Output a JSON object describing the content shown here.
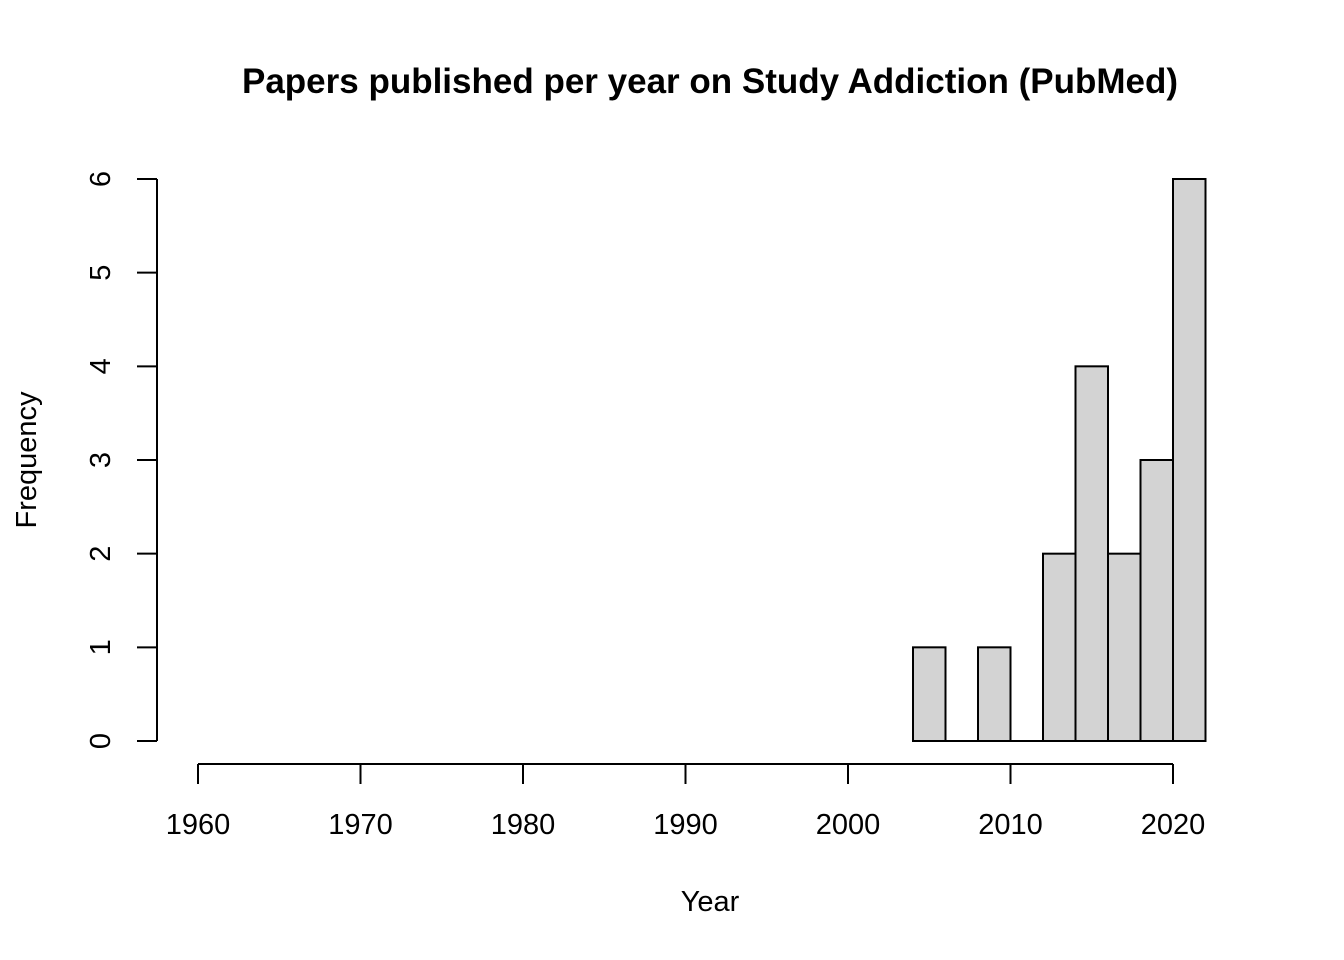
{
  "chart_data": {
    "type": "bar",
    "title": "Papers published per year on Study Addiction (PubMed)",
    "xlabel": "Year",
    "ylabel": "Frequency",
    "bin_width": 2,
    "bins": [
      {
        "start": 2004,
        "end": 2006,
        "value": 1
      },
      {
        "start": 2006,
        "end": 2008,
        "value": 0
      },
      {
        "start": 2008,
        "end": 2010,
        "value": 1
      },
      {
        "start": 2010,
        "end": 2012,
        "value": 0
      },
      {
        "start": 2012,
        "end": 2014,
        "value": 2
      },
      {
        "start": 2014,
        "end": 2016,
        "value": 4
      },
      {
        "start": 2016,
        "end": 2018,
        "value": 2
      },
      {
        "start": 2018,
        "end": 2020,
        "value": 3
      },
      {
        "start": 2020,
        "end": 2022,
        "value": 6
      }
    ],
    "xticks": [
      1960,
      1970,
      1980,
      1990,
      2000,
      2010,
      2020
    ],
    "yticks": [
      0,
      1,
      2,
      3,
      4,
      5,
      6
    ],
    "xlim": [
      1960,
      2022
    ],
    "ylim": [
      0,
      6
    ],
    "bar_color": "#d3d3d3",
    "grid": false,
    "legend": "none"
  }
}
